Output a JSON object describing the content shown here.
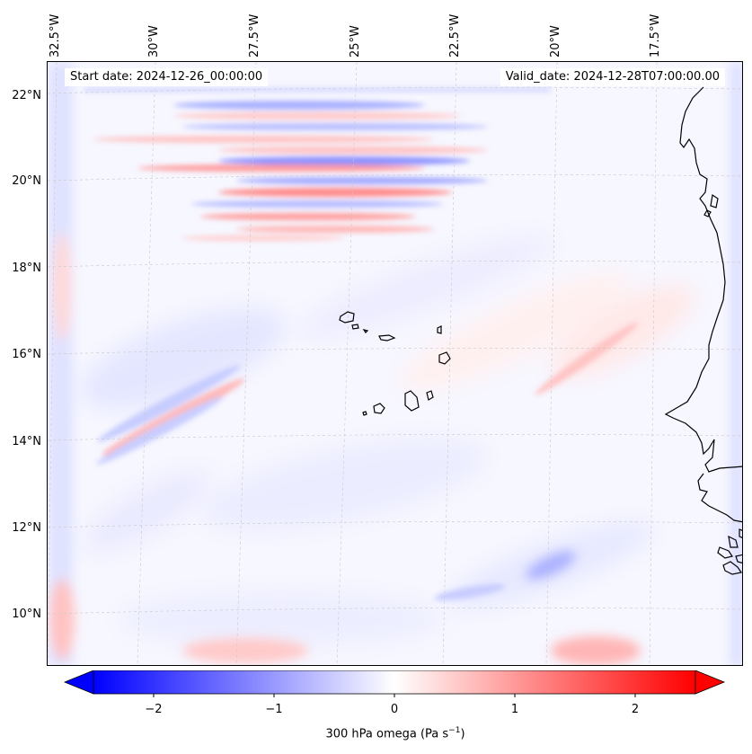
{
  "map": {
    "start_date": "Start date: 2024-12-26_00:00:00",
    "valid_date": "Valid_date: 2024-12-28T07:00:00.00",
    "lon_labels": [
      "32.5°W",
      "30°W",
      "27.5°W",
      "25°W",
      "22.5°W",
      "20°W",
      "17.5°W"
    ],
    "lat_labels": [
      "22°N",
      "20°N",
      "18°N",
      "16°N",
      "14°N",
      "12°N",
      "10°N"
    ],
    "variable": "300 hPa omega",
    "units": "(Pa s",
    "units_exp": "−1",
    "units_close": ")"
  },
  "colorbar": {
    "ticks": [
      "−2",
      "−1",
      "0",
      "1",
      "2"
    ],
    "min": -2.5,
    "max": 2.5,
    "neg_color": "#0000ff",
    "mid_color": "#ffffff",
    "pos_color": "#ff0000"
  }
}
